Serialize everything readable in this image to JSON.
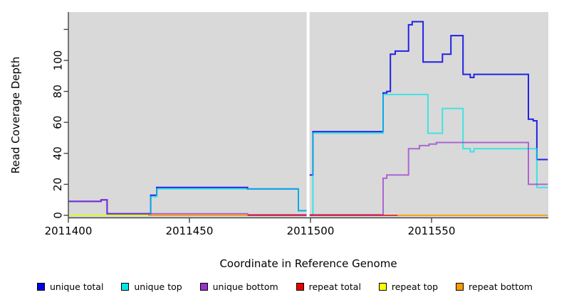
{
  "chart_data": {
    "type": "line",
    "title": "",
    "xlabel": "Coordinate in Reference Genome",
    "ylabel": "Read Coverage Depth",
    "line_style": "step-after",
    "plot_bg": "#d9d9d9",
    "axis_color": "#444444",
    "x_range": [
      2011400,
      2011598
    ],
    "y_range": [
      0,
      125
    ],
    "x_ticks": [
      2011400,
      2011450,
      2011500,
      2011550
    ],
    "y_ticks": [
      0,
      20,
      40,
      60,
      80,
      100
    ],
    "y_ticks_unlabeled": [
      120
    ],
    "grid": false,
    "legend_position": "bottom",
    "gap_x": [
      2011498.4,
      2011499.6
    ],
    "gap_note": "white vertical band (no data) just left of 2011500",
    "series": [
      {
        "name": "unique total",
        "color": "#0000e6",
        "opacity": 0.85,
        "width": 2,
        "segments": [
          [
            [
              2011400,
              9
            ],
            [
              2011413.5,
              10
            ],
            [
              2011416,
              1
            ],
            [
              2011434,
              13
            ],
            [
              2011436.5,
              18
            ],
            [
              2011474,
              17
            ],
            [
              2011495,
              3
            ],
            [
              2011498.4,
              3
            ]
          ],
          [
            [
              2011499.6,
              26
            ],
            [
              2011501,
              54
            ],
            [
              2011530,
              79
            ],
            [
              2011531.5,
              80
            ],
            [
              2011533,
              104
            ],
            [
              2011535,
              106
            ],
            [
              2011540.5,
              123
            ],
            [
              2011542,
              125
            ],
            [
              2011546.5,
              99
            ],
            [
              2011554.5,
              104
            ],
            [
              2011558,
              116
            ],
            [
              2011563,
              91
            ],
            [
              2011566,
              89
            ],
            [
              2011567.5,
              91
            ],
            [
              2011590,
              62
            ],
            [
              2011592,
              61
            ],
            [
              2011593.5,
              36
            ],
            [
              2011598,
              36
            ]
          ]
        ]
      },
      {
        "name": "unique top",
        "color": "#00e6e6",
        "opacity": 0.7,
        "width": 2,
        "segments": [
          [
            [
              2011400,
              0
            ],
            [
              2011434,
              12
            ],
            [
              2011436.5,
              17
            ],
            [
              2011495,
              3
            ],
            [
              2011498.4,
              3
            ]
          ],
          [
            [
              2011499.6,
              0
            ],
            [
              2011501,
              53
            ],
            [
              2011530,
              78
            ],
            [
              2011548.5,
              53
            ],
            [
              2011554.5,
              69
            ],
            [
              2011563,
              43
            ],
            [
              2011566,
              41
            ],
            [
              2011567.5,
              43
            ],
            [
              2011593.5,
              18
            ],
            [
              2011598,
              18
            ]
          ]
        ]
      },
      {
        "name": "unique bottom",
        "color": "#9933cc",
        "opacity": 0.7,
        "width": 2,
        "segments": [
          [
            [
              2011400,
              9
            ],
            [
              2011413.5,
              10
            ],
            [
              2011416,
              1
            ],
            [
              2011474,
              0.4
            ],
            [
              2011498.4,
              0.4
            ]
          ],
          [
            [
              2011499.6,
              0.4
            ],
            [
              2011530,
              24
            ],
            [
              2011531.5,
              26
            ],
            [
              2011540.5,
              43
            ],
            [
              2011545,
              45
            ],
            [
              2011549,
              46
            ],
            [
              2011552,
              47
            ],
            [
              2011590,
              20
            ],
            [
              2011598,
              20
            ]
          ]
        ]
      },
      {
        "name": "repeat total",
        "color": "#e60000",
        "opacity": 0.75,
        "width": 2,
        "segments": [
          [
            [
              2011474,
              0
            ],
            [
              2011536,
              0
            ]
          ]
        ]
      },
      {
        "name": "repeat top",
        "color": "#ffff00",
        "opacity": 0.8,
        "width": 2,
        "segments": [
          [
            [
              2011400,
              0
            ],
            [
              2011433,
              0
            ]
          ]
        ]
      },
      {
        "name": "repeat bottom",
        "color": "#ff9900",
        "opacity": 0.9,
        "width": 2,
        "segments": [
          [
            [
              2011433,
              0
            ],
            [
              2011474,
              0
            ]
          ],
          [
            [
              2011536,
              0
            ],
            [
              2011598,
              0
            ]
          ]
        ]
      }
    ],
    "legend": [
      {
        "label": "unique total",
        "color": "#0000e6"
      },
      {
        "label": "unique top",
        "color": "#00e6e6"
      },
      {
        "label": "unique bottom",
        "color": "#9933cc"
      },
      {
        "label": "repeat total",
        "color": "#e60000"
      },
      {
        "label": "repeat top",
        "color": "#ffff00"
      },
      {
        "label": "repeat bottom",
        "color": "#ff9900"
      }
    ]
  }
}
